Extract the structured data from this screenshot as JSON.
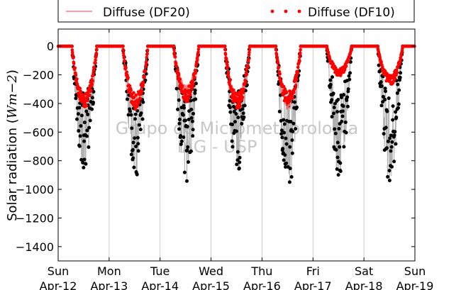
{
  "chart_data": {
    "type": "scatter",
    "ylabel": "Solar radiation (Wm−2)",
    "ylabel_unit_prefix": "Solar radiation (",
    "ylabel_unit_math": "Wm",
    "ylabel_unit_exp": "−2",
    "ylabel_unit_suffix": ")",
    "ylim": [
      -1500,
      120
    ],
    "yticks": [
      0,
      -200,
      -400,
      -600,
      -800,
      -1000,
      -1200,
      -1400
    ],
    "ytick_labels": [
      "0",
      "−200",
      "−400",
      "−600",
      "−800",
      "−1000",
      "−1200",
      "−1400"
    ],
    "xlim": [
      0,
      7
    ],
    "xticks": [
      {
        "day": "Sun",
        "date": "Apr-12"
      },
      {
        "day": "Mon",
        "date": "Apr-13"
      },
      {
        "day": "Tue",
        "date": "Apr-14"
      },
      {
        "day": "Wed",
        "date": "Apr-15"
      },
      {
        "day": "Thu",
        "date": "Apr-16"
      },
      {
        "day": "Fri",
        "date": "Apr-17"
      },
      {
        "day": "Sat",
        "date": "Apr-18"
      },
      {
        "day": "Sun",
        "date": "Apr-19"
      }
    ],
    "grid": "vertical",
    "legend_position": "top",
    "watermark": [
      "Grupo de Micrometeorologia",
      "IAG - USP"
    ],
    "series": [
      {
        "name": "Diffuse (DF20)",
        "color": "#ff6666",
        "style": "line",
        "daily_min": [
          -400,
          -430,
          -330,
          -400,
          -450,
          -200,
          -240
        ]
      },
      {
        "name": "Diffuse (DF10)",
        "color": "#ff0000",
        "style": "dots",
        "daily_min": [
          -430,
          -440,
          -390,
          -440,
          -420,
          -210,
          -270
        ]
      },
      {
        "name": "",
        "color": "#000000",
        "style": "dots",
        "daily_min": [
          -910,
          -930,
          -950,
          -880,
          -1000,
          -940,
          -970
        ]
      }
    ]
  }
}
